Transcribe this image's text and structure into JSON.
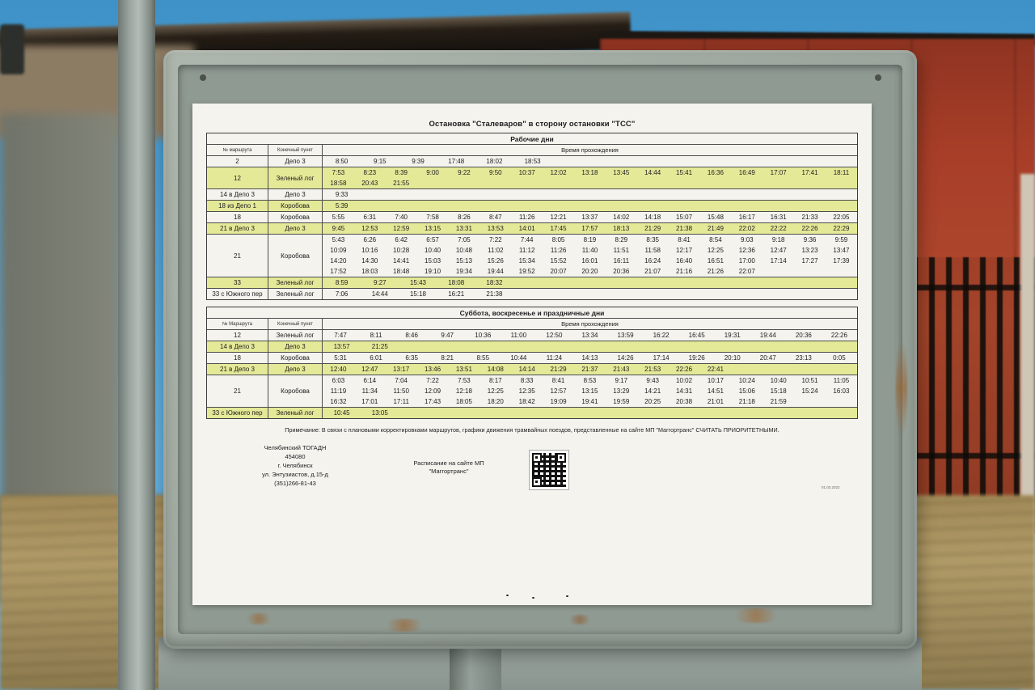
{
  "title": "Остановка \"Сталеваров\" в сторону остановки \"ТСС\"",
  "sections": [
    {
      "day_header": "Рабочие дни",
      "col_route": "№ маршрута",
      "col_terminus": "Конечный пункт",
      "col_times": "Время прохождения",
      "rows": [
        {
          "route": "2",
          "terminus": "Депо 3",
          "highlight": false,
          "grid": 14,
          "lines": [
            [
              "8:50",
              "9:15",
              "9:39",
              "17:48",
              "18:02",
              "18:53"
            ]
          ]
        },
        {
          "route": "12",
          "terminus": "Зеленый лог",
          "highlight": true,
          "grid": 17,
          "lines": [
            [
              "7:53",
              "8:23",
              "8:39",
              "9:00",
              "9:22",
              "9:50",
              "10:37",
              "12:02",
              "13:18",
              "13:45",
              "14:44",
              "15:41",
              "16:36",
              "16:49",
              "17:07",
              "17:41",
              "18:11"
            ],
            [
              "18:58",
              "20:43",
              "21:55"
            ]
          ]
        },
        {
          "route": "14 в Депо 3",
          "terminus": "Депо 3",
          "highlight": false,
          "grid": 14,
          "lines": [
            [
              "9:33"
            ]
          ]
        },
        {
          "route": "18 из Депо 1",
          "terminus": "Коробова",
          "highlight": true,
          "grid": 14,
          "lines": [
            [
              "5:39"
            ]
          ]
        },
        {
          "route": "18",
          "terminus": "Коробова",
          "highlight": false,
          "grid": 17,
          "lines": [
            [
              "5:55",
              "6:31",
              "7:40",
              "7:58",
              "8:26",
              "8:47",
              "11:26",
              "12:21",
              "13:37",
              "14:02",
              "14:18",
              "15:07",
              "15:48",
              "16:17",
              "16:31",
              "21:33",
              "22:05"
            ]
          ]
        },
        {
          "route": "21 в Депо 3",
          "terminus": "Депо 3",
          "highlight": true,
          "grid": 17,
          "lines": [
            [
              "9:45",
              "12:53",
              "12:59",
              "13:15",
              "13:31",
              "13:53",
              "14:01",
              "17:45",
              "17:57",
              "18:13",
              "21:29",
              "21:38",
              "21:49",
              "22:02",
              "22:22",
              "22:26",
              "22:29"
            ]
          ]
        },
        {
          "route": "21",
          "terminus": "Коробова",
          "highlight": false,
          "grid": 17,
          "lines": [
            [
              "5:43",
              "6:26",
              "6:42",
              "6:57",
              "7:05",
              "7:22",
              "7:44",
              "8:05",
              "8:19",
              "8:29",
              "8:35",
              "8:41",
              "8:54",
              "9:03",
              "9:18",
              "9:36",
              "9:59"
            ],
            [
              "10:09",
              "10:16",
              "10:28",
              "10:40",
              "10:48",
              "11:02",
              "11:12",
              "11:26",
              "11:40",
              "11:51",
              "11:58",
              "12:17",
              "12:25",
              "12:36",
              "12:47",
              "13:23",
              "13:47"
            ],
            [
              "14:20",
              "14:30",
              "14:41",
              "15:03",
              "15:13",
              "15:26",
              "15:34",
              "15:52",
              "16:01",
              "16:11",
              "16:24",
              "16:40",
              "16:51",
              "17:00",
              "17:14",
              "17:27",
              "17:39"
            ],
            [
              "17:52",
              "18:03",
              "18:48",
              "19:10",
              "19:34",
              "19:44",
              "19:52",
              "20:07",
              "20:20",
              "20:36",
              "21:07",
              "21:16",
              "21:26",
              "22:07"
            ]
          ]
        },
        {
          "route": "33",
          "terminus": "Зеленый лог",
          "highlight": true,
          "grid": 14,
          "lines": [
            [
              "8:59",
              "9:27",
              "15:43",
              "18:08",
              "18:32"
            ]
          ]
        },
        {
          "route": "33  с Южного пер",
          "terminus": "Зеленый лог",
          "highlight": false,
          "grid": 14,
          "lines": [
            [
              "7:06",
              "14:44",
              "15:18",
              "16:21",
              "21:38"
            ]
          ]
        }
      ]
    },
    {
      "day_header": "Суббота, воскресенье и праздничные дни",
      "col_route": "№ Маршрута",
      "col_terminus": "Конечный пункт",
      "col_times": "Время прохождения",
      "rows": [
        {
          "route": "12",
          "terminus": "Зеленый лог",
          "highlight": false,
          "grid": 15,
          "lines": [
            [
              "7:47",
              "8:11",
              "8:46",
              "9:47",
              "10:36",
              "11:00",
              "12:50",
              "13:34",
              "13:59",
              "16:22",
              "16:45",
              "19:31",
              "19:44",
              "20:36",
              "22:26"
            ]
          ]
        },
        {
          "route": "14 в Депо 3",
          "terminus": "Депо 3",
          "highlight": true,
          "grid": 14,
          "lines": [
            [
              "13:57",
              "21:25"
            ]
          ]
        },
        {
          "route": "18",
          "terminus": "Коробова",
          "highlight": false,
          "grid": 15,
          "lines": [
            [
              "5:31",
              "6:01",
              "6:35",
              "8:21",
              "8:55",
              "10:44",
              "11:24",
              "14:13",
              "14:26",
              "17:14",
              "19:26",
              "20:10",
              "20:47",
              "23:13",
              "0:05"
            ]
          ]
        },
        {
          "route": "21 в Депо 3",
          "terminus": "Депо 3",
          "highlight": true,
          "grid": 17,
          "lines": [
            [
              "12:40",
              "12:47",
              "13:17",
              "13:46",
              "13:51",
              "14:08",
              "14:14",
              "21:29",
              "21:37",
              "21:43",
              "21:53",
              "22:26",
              "22:41"
            ]
          ]
        },
        {
          "route": "21",
          "terminus": "Коробова",
          "highlight": false,
          "grid": 17,
          "lines": [
            [
              "6:03",
              "6:14",
              "7:04",
              "7:22",
              "7:53",
              "8:17",
              "8:33",
              "8:41",
              "8:53",
              "9:17",
              "9:43",
              "10:02",
              "10:17",
              "10:24",
              "10:40",
              "10:51",
              "11:05"
            ],
            [
              "11:19",
              "11:34",
              "11:50",
              "12:09",
              "12:18",
              "12:25",
              "12:35",
              "12:57",
              "13:15",
              "13:29",
              "14:21",
              "14:31",
              "14:51",
              "15:06",
              "15:18",
              "15:24",
              "16:03"
            ],
            [
              "16:32",
              "17:01",
              "17:11",
              "17:43",
              "18:05",
              "18:20",
              "18:42",
              "19:09",
              "19:41",
              "19:59",
              "20:25",
              "20:38",
              "21:01",
              "21:18",
              "21:59"
            ]
          ]
        },
        {
          "route": "33 с Южного пер",
          "terminus": "Зеленый лог",
          "highlight": true,
          "grid": 14,
          "lines": [
            [
              "10:45",
              "13:05"
            ]
          ]
        }
      ]
    }
  ],
  "note": "Примечание: В связи с плановыми корректировками маршрутов, графики движения трамвайных поездов, представленные на сайте МП \"Маггортранс\" СЧИТАТЬ ПРИОРИТЕТНЫМИ.",
  "address_lines": [
    "Челябинский ТОГАДН",
    "454080",
    "г. Челябинск",
    "ул. Энтузиастов, д.15-д",
    "(351)266-81-43"
  ],
  "qr_caption_lines": [
    "Расписание на сайте МП",
    "\"Маггортранс\""
  ],
  "footer_date": "01.03.2022",
  "colors": {
    "highlight": "#e4e998",
    "paper": "#f4f3ee",
    "frame": "#a3aca3",
    "sky": "#4d9fd2",
    "building": "#a83e28",
    "ground": "#a18a58"
  }
}
